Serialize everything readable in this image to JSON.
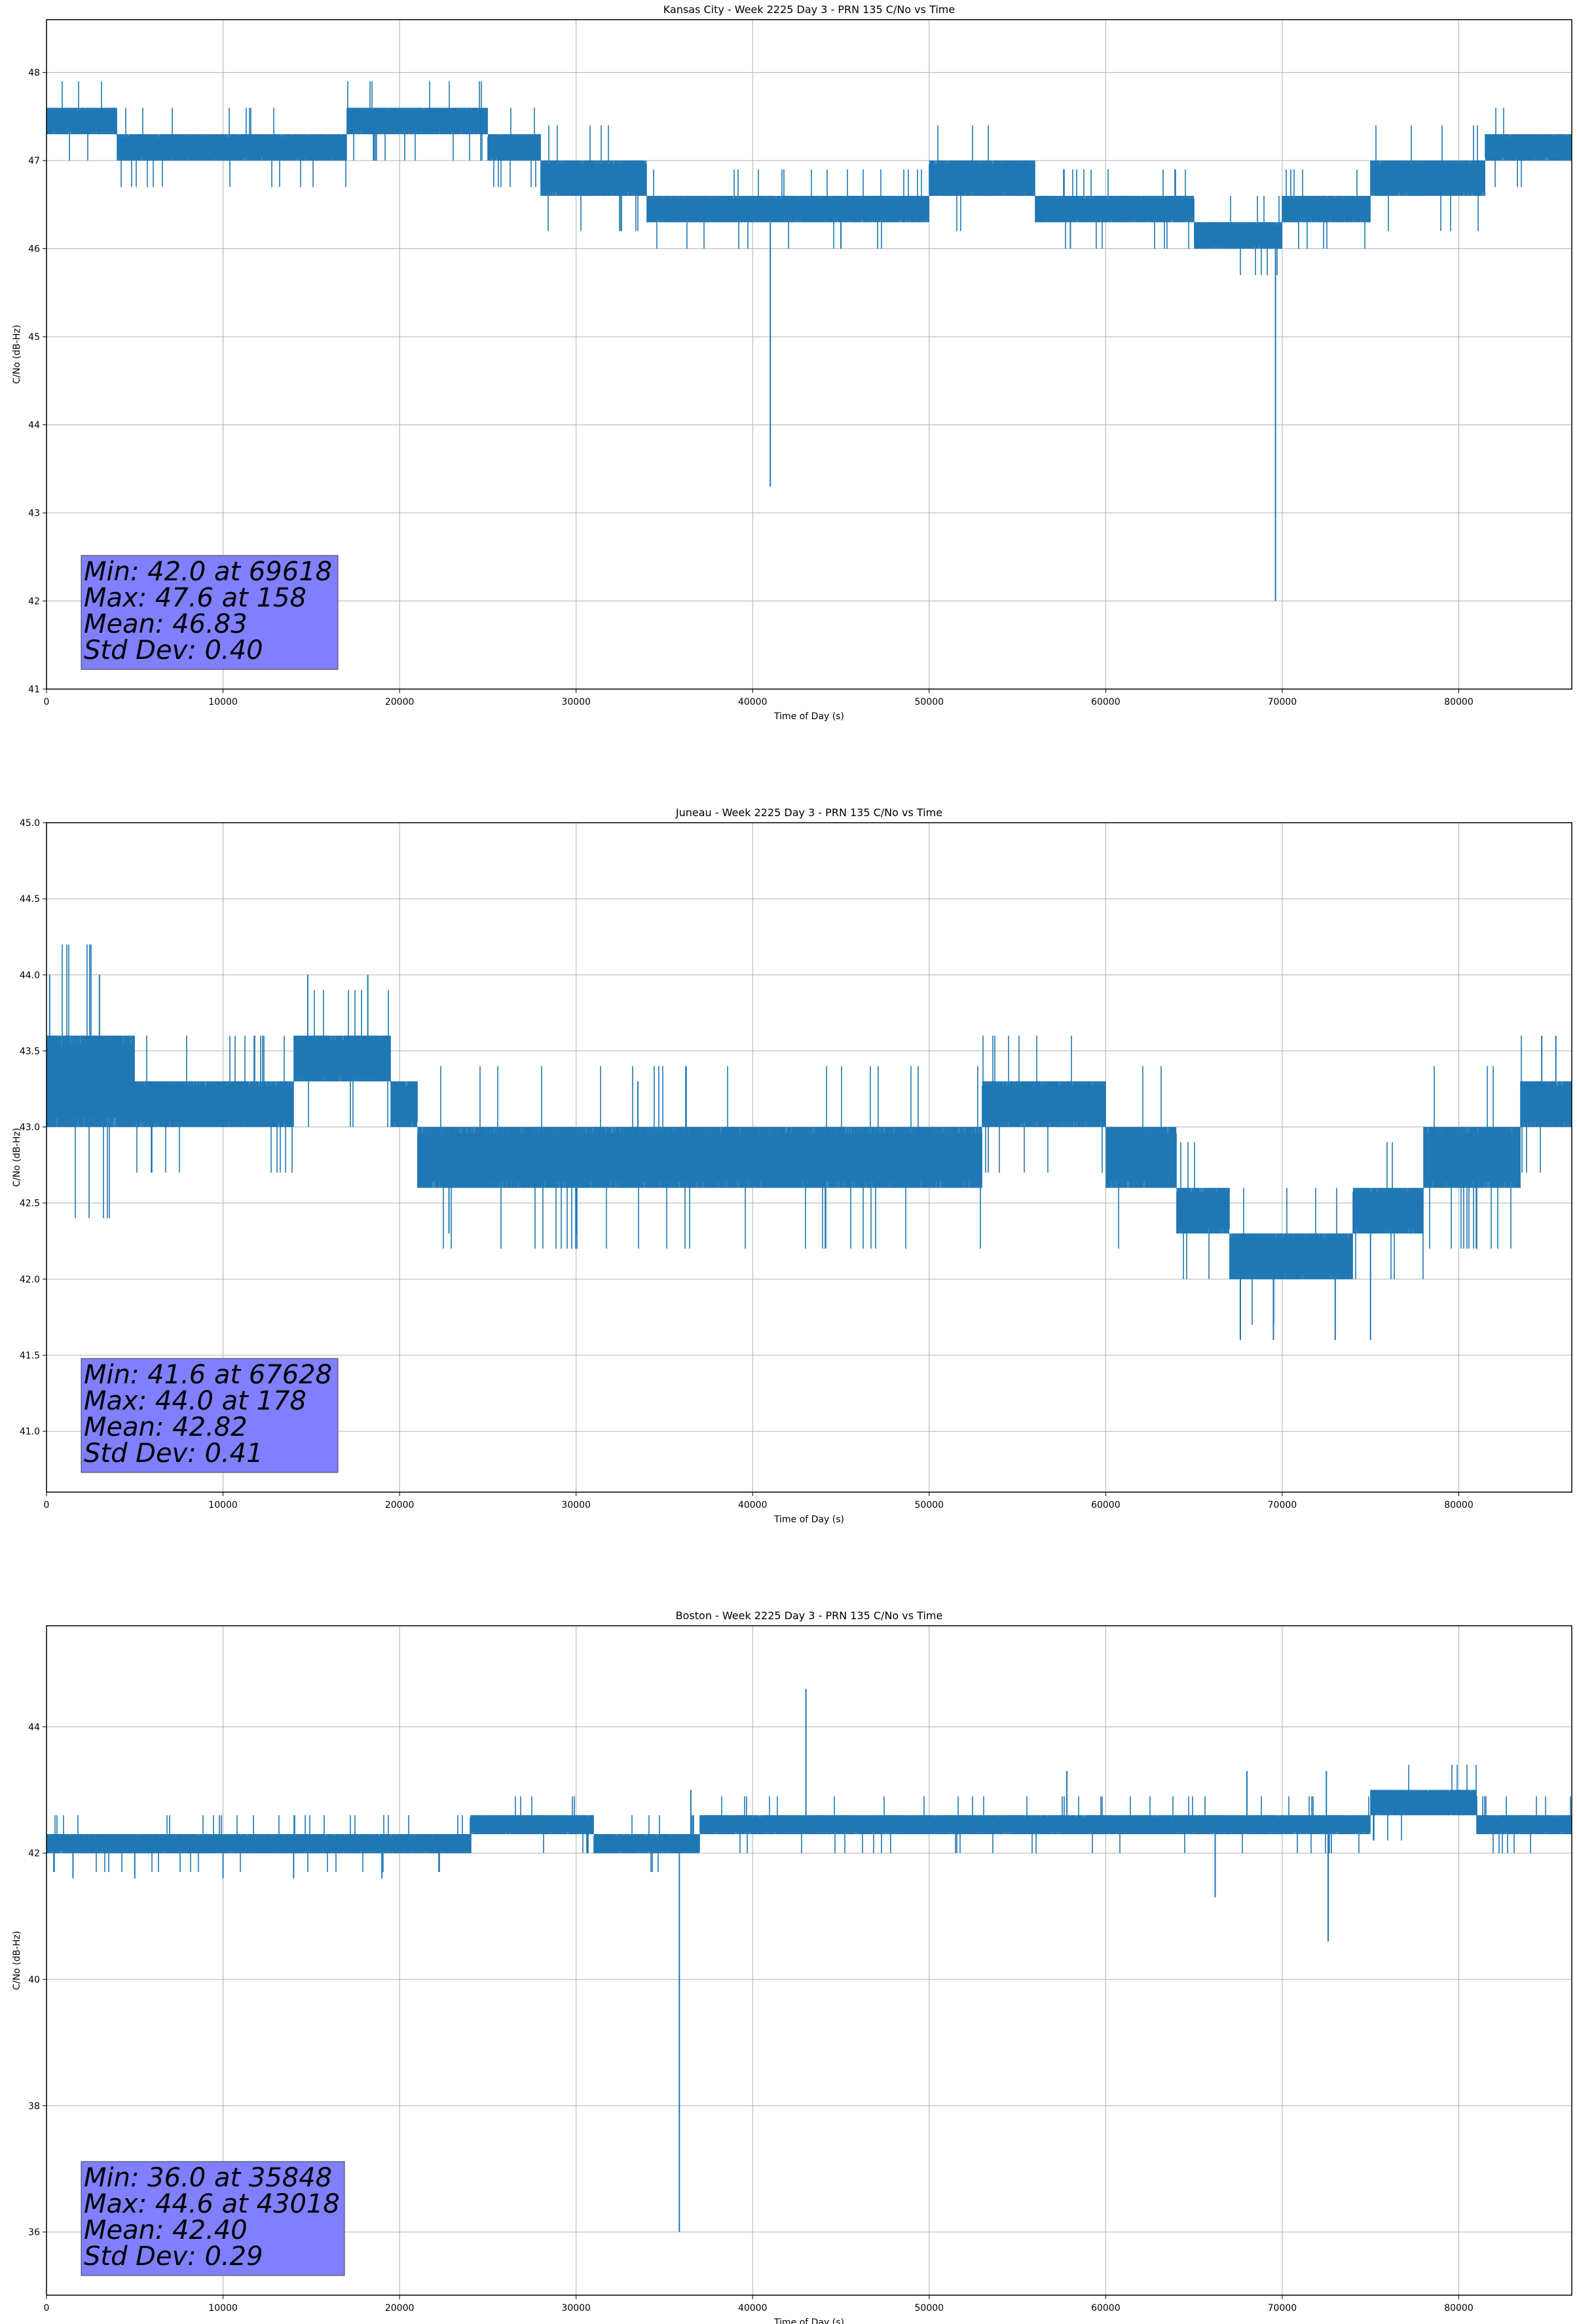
{
  "colors": {
    "series": "#1f77b4",
    "stats_box": "#8080ff",
    "grid": "#b0b0b0",
    "axes": "#000000"
  },
  "chart_data": [
    {
      "type": "line",
      "title": "Kansas City - Week 2225 Day 3 - PRN 135 C/No vs Time",
      "xlabel": "Time of Day (s)",
      "ylabel": "C/No (dB-Hz)",
      "xlim": [
        0,
        86400
      ],
      "ylim": [
        41,
        48.6
      ],
      "xticks": [
        0,
        10000,
        20000,
        30000,
        40000,
        50000,
        60000,
        70000,
        80000
      ],
      "yticks": [
        41,
        42,
        43,
        44,
        45,
        46,
        47,
        48
      ],
      "ytick_decimals": 0,
      "grid": true,
      "legend": "none",
      "band": [
        [
          0,
          47.3,
          47.6
        ],
        [
          2000,
          47.3,
          47.6
        ],
        [
          4000,
          47.0,
          47.3
        ],
        [
          8000,
          47.0,
          47.3
        ],
        [
          12000,
          47.0,
          47.3
        ],
        [
          16000,
          47.0,
          47.3
        ],
        [
          17000,
          47.3,
          47.6
        ],
        [
          24000,
          47.3,
          47.6
        ],
        [
          25000,
          47.0,
          47.3
        ],
        [
          27500,
          47.0,
          47.3
        ],
        [
          28000,
          46.6,
          47.0
        ],
        [
          31000,
          46.6,
          47.0
        ],
        [
          34000,
          46.3,
          46.6
        ],
        [
          37000,
          46.3,
          46.6
        ],
        [
          40000,
          46.3,
          46.6
        ],
        [
          45000,
          46.3,
          46.6
        ],
        [
          47000,
          46.3,
          46.6
        ],
        [
          50000,
          46.6,
          47.0
        ],
        [
          52000,
          46.6,
          47.0
        ],
        [
          55000,
          46.6,
          47.0
        ],
        [
          56000,
          46.3,
          46.6
        ],
        [
          60000,
          46.3,
          46.6
        ],
        [
          64000,
          46.3,
          46.6
        ],
        [
          65000,
          46.0,
          46.3
        ],
        [
          69000,
          46.0,
          46.3
        ],
        [
          70000,
          46.3,
          46.6
        ],
        [
          73000,
          46.3,
          46.6
        ],
        [
          75000,
          46.6,
          47.0
        ],
        [
          80000,
          46.6,
          47.0
        ],
        [
          81500,
          47.0,
          47.3
        ],
        [
          84000,
          47.0,
          47.3
        ],
        [
          86400,
          47.0,
          47.3
        ]
      ],
      "spikes": [
        [
          41000,
          43.3
        ],
        [
          69618,
          42.0
        ],
        [
          158,
          47.6
        ],
        [
          45000,
          46.0
        ],
        [
          58000,
          46.0
        ],
        [
          38000,
          46.3
        ]
      ],
      "stats": [
        "Min: 42.0 at 69618",
        "Max: 47.6 at 158",
        "Mean: 46.83",
        "Std Dev: 0.40"
      ]
    },
    {
      "type": "line",
      "title": "Juneau - Week 2225 Day 3 - PRN 135 C/No vs Time",
      "xlabel": "Time of Day (s)",
      "ylabel": "C/No (dB-Hz)",
      "xlim": [
        0,
        86400
      ],
      "ylim": [
        40.6,
        45.0
      ],
      "xticks": [
        0,
        10000,
        20000,
        30000,
        40000,
        50000,
        60000,
        70000,
        80000
      ],
      "yticks": [
        41.0,
        41.5,
        42.0,
        42.5,
        43.0,
        43.5,
        44.0,
        44.5,
        45.0
      ],
      "ytick_decimals": 1,
      "grid": true,
      "legend": "none",
      "band": [
        [
          0,
          43.0,
          43.6
        ],
        [
          5000,
          43.0,
          43.3
        ],
        [
          10000,
          43.0,
          43.3
        ],
        [
          14000,
          43.3,
          43.6
        ],
        [
          18500,
          43.3,
          43.6
        ],
        [
          19500,
          43.0,
          43.3
        ],
        [
          21000,
          42.6,
          43.0
        ],
        [
          26000,
          42.6,
          43.0
        ],
        [
          30000,
          42.6,
          43.0
        ],
        [
          35000,
          42.6,
          43.0
        ],
        [
          42000,
          42.6,
          43.0
        ],
        [
          47000,
          42.6,
          43.0
        ],
        [
          53000,
          43.0,
          43.3
        ],
        [
          59000,
          43.0,
          43.3
        ],
        [
          60000,
          42.6,
          43.0
        ],
        [
          63000,
          42.6,
          43.0
        ],
        [
          64000,
          42.3,
          42.6
        ],
        [
          66000,
          42.3,
          42.6
        ],
        [
          67000,
          42.0,
          42.3
        ],
        [
          69000,
          42.0,
          42.3
        ],
        [
          70000,
          42.0,
          42.3
        ],
        [
          73000,
          42.0,
          42.3
        ],
        [
          74000,
          42.3,
          42.6
        ],
        [
          77000,
          42.3,
          42.6
        ],
        [
          78000,
          42.6,
          43.0
        ],
        [
          83000,
          42.6,
          43.0
        ],
        [
          83500,
          43.0,
          43.3
        ],
        [
          86400,
          43.0,
          43.3
        ]
      ],
      "spikes": [
        [
          178,
          44.0
        ],
        [
          600,
          43.6
        ],
        [
          3000,
          44.0
        ],
        [
          14800,
          44.0
        ],
        [
          18200,
          44.0
        ],
        [
          67628,
          41.6
        ],
        [
          69500,
          41.6
        ],
        [
          73000,
          41.6
        ],
        [
          75000,
          41.6
        ],
        [
          22800,
          42.3
        ],
        [
          30000,
          42.3
        ],
        [
          33500,
          43.3
        ],
        [
          84700,
          43.6
        ],
        [
          85500,
          43.6
        ]
      ],
      "stats": [
        "Min: 41.6 at 67628",
        "Max: 44.0 at 178",
        "Mean: 42.82",
        "Std Dev: 0.41"
      ]
    },
    {
      "type": "line",
      "title": "Boston - Week 2225 Day 3 - PRN 135 C/No vs Time",
      "xlabel": "Time of Day (s)",
      "ylabel": "C/No (dB-Hz)",
      "xlim": [
        0,
        86400
      ],
      "ylim": [
        35,
        45.6
      ],
      "xticks": [
        0,
        10000,
        20000,
        30000,
        40000,
        50000,
        60000,
        70000,
        80000
      ],
      "yticks": [
        36,
        38,
        40,
        42,
        44
      ],
      "ytick_decimals": 0,
      "grid": true,
      "legend": "none",
      "band": [
        [
          0,
          42.0,
          42.3
        ],
        [
          8000,
          42.0,
          42.3
        ],
        [
          16000,
          42.0,
          42.3
        ],
        [
          23000,
          42.0,
          42.3
        ],
        [
          24000,
          42.3,
          42.6
        ],
        [
          30000,
          42.3,
          42.6
        ],
        [
          31000,
          42.0,
          42.3
        ],
        [
          36000,
          42.0,
          42.3
        ],
        [
          37000,
          42.3,
          42.6
        ],
        [
          43000,
          42.3,
          42.6
        ],
        [
          50000,
          42.3,
          42.6
        ],
        [
          51000,
          42.3,
          42.6
        ],
        [
          60000,
          42.3,
          42.6
        ],
        [
          68000,
          42.3,
          42.6
        ],
        [
          74000,
          42.3,
          42.6
        ],
        [
          75000,
          42.6,
          43.0
        ],
        [
          80000,
          42.6,
          43.0
        ],
        [
          81000,
          42.3,
          42.6
        ],
        [
          86400,
          42.3,
          42.6
        ]
      ],
      "spikes": [
        [
          35848,
          36.0
        ],
        [
          43018,
          44.6
        ],
        [
          66200,
          41.3
        ],
        [
          72600,
          40.6
        ],
        [
          1500,
          41.6
        ],
        [
          5000,
          41.6
        ],
        [
          10000,
          41.6
        ],
        [
          14000,
          41.6
        ],
        [
          19000,
          41.6
        ],
        [
          36500,
          43.0
        ],
        [
          57800,
          43.3
        ],
        [
          68000,
          43.3
        ],
        [
          72500,
          43.3
        ]
      ],
      "stats": [
        "Min: 36.0 at 35848",
        "Max: 44.6 at 43018",
        "Mean: 42.40",
        "Std Dev: 0.29"
      ]
    }
  ]
}
